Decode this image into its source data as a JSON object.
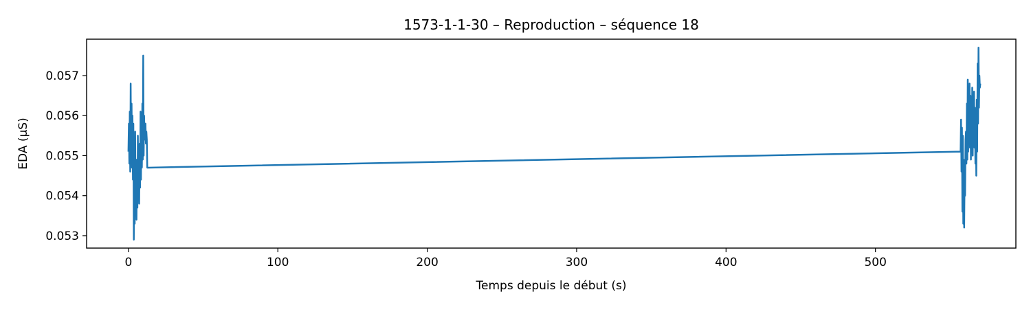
{
  "chart_data": {
    "type": "line",
    "title": "1573-1-1-30 – Reproduction – séquence 18",
    "xlabel": "Temps depuis le début (s)",
    "ylabel": "EDA (µS)",
    "xlim": [
      -28,
      594
    ],
    "ylim": [
      0.05269,
      0.05791
    ],
    "xticks": [
      0,
      100,
      200,
      300,
      400,
      500
    ],
    "xtick_labels": [
      "0",
      "100",
      "200",
      "300",
      "400",
      "500"
    ],
    "yticks": [
      0.053,
      0.054,
      0.055,
      0.056,
      0.057
    ],
    "ytick_labels": [
      "0.053",
      "0.054",
      "0.055",
      "0.056",
      "0.057"
    ],
    "grid": false,
    "legend": "none",
    "series": [
      {
        "color": "#1f77b4",
        "x": [
          0.0,
          0.3,
          0.6,
          0.9,
          1.2,
          1.5,
          1.8,
          2.1,
          2.4,
          2.7,
          3.0,
          3.3,
          3.6,
          3.9,
          4.2,
          4.5,
          4.8,
          5.1,
          5.4,
          5.7,
          6.0,
          6.3,
          6.6,
          6.9,
          7.2,
          7.5,
          7.8,
          8.1,
          8.4,
          8.7,
          9.0,
          9.3,
          9.6,
          9.9,
          10.2,
          10.5,
          10.8,
          11.1,
          11.4,
          11.7,
          12.0,
          12.3,
          12.6,
          12.9,
          13.2,
          557.0,
          557.3,
          557.6,
          557.9,
          558.2,
          558.5,
          558.8,
          559.1,
          559.4,
          559.7,
          560.0,
          560.3,
          560.6,
          560.9,
          561.2,
          561.5,
          561.8,
          562.1,
          562.4,
          562.7,
          563.0,
          563.3,
          563.6,
          563.9,
          564.2,
          564.5,
          564.8,
          565.1,
          565.4,
          565.7,
          566.0,
          566.3,
          566.6,
          566.9,
          567.2,
          567.5,
          567.8,
          568.1,
          568.4,
          568.7,
          569.0,
          569.3,
          569.6,
          569.9,
          570.2
        ],
        "y": [
          0.0551,
          0.0558,
          0.0548,
          0.0561,
          0.0546,
          0.0568,
          0.0549,
          0.0563,
          0.0547,
          0.056,
          0.0544,
          0.0558,
          0.0529,
          0.0546,
          0.0533,
          0.0556,
          0.0536,
          0.0546,
          0.0534,
          0.0549,
          0.0537,
          0.0555,
          0.054,
          0.0548,
          0.0538,
          0.0553,
          0.0542,
          0.0561,
          0.0544,
          0.0559,
          0.0547,
          0.0563,
          0.0549,
          0.0575,
          0.055,
          0.056,
          0.0555,
          0.0554,
          0.0558,
          0.0553,
          0.0556,
          0.0554,
          0.0547,
          0.0547,
          0.0547,
          0.0551,
          0.0559,
          0.0546,
          0.0557,
          0.0536,
          0.0555,
          0.0533,
          0.0549,
          0.0532,
          0.0545,
          0.054,
          0.0554,
          0.0556,
          0.0548,
          0.0563,
          0.0549,
          0.0569,
          0.0551,
          0.0566,
          0.0554,
          0.0568,
          0.0552,
          0.0565,
          0.0549,
          0.0562,
          0.0552,
          0.0567,
          0.055,
          0.0563,
          0.0555,
          0.0566,
          0.0552,
          0.0562,
          0.0548,
          0.0559,
          0.0545,
          0.0564,
          0.0551,
          0.0573,
          0.0558,
          0.0577,
          0.0562,
          0.057,
          0.0567,
          0.0568
        ]
      }
    ]
  }
}
